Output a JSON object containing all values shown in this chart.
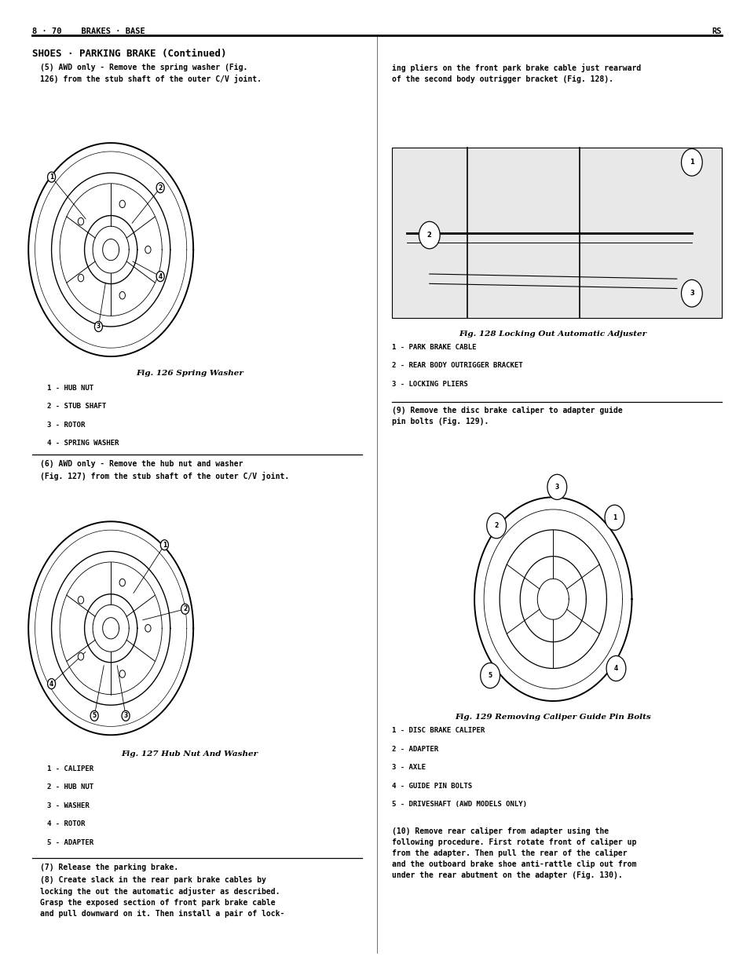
{
  "bg_color": "#ffffff",
  "page_width": 9.6,
  "page_height": 12.42,
  "header_left": "8 · 70    BRAKES · BASE",
  "header_right": "RS",
  "section_title": "SHOES · PARKING BRAKE (Continued)",
  "left_col": {
    "step5_text": "(5) AWD only - Remove the spring washer (Fig.\n126) from the stub shaft of the outer C/V joint.",
    "fig126_caption": "Fig. 126 Spring Washer",
    "fig126_labels": [
      "1 - HUB NUT",
      "2 - STUB SHAFT",
      "3 - ROTOR",
      "4 - SPRING WASHER"
    ],
    "step6_text": "(6) AWD only - Remove the hub nut and washer\n(Fig. 127) from the stub shaft of the outer C/V joint.",
    "fig127_caption": "Fig. 127 Hub Nut And Washer",
    "fig127_labels": [
      "1 - CALIPER",
      "2 - HUB NUT",
      "3 - WASHER",
      "4 - ROTOR",
      "5 - ADAPTER"
    ],
    "step7_text": "(7) Release the parking brake.",
    "step8_text": "(8) Create slack in the rear park brake cables by\nlocking the out the automatic adjuster as described.\nGrasp the exposed section of front park brake cable\nand pull downward on it. Then install a pair of lock-"
  },
  "right_col": {
    "step8_cont_text": "ing pliers on the front park brake cable just rearward\nof the second body outrigger bracket (Fig. 128).",
    "fig128_caption": "Fig. 128 Locking Out Automatic Adjuster",
    "fig128_labels": [
      "1 - PARK BRAKE CABLE",
      "2 - REAR BODY OUTRIGGER BRACKET",
      "3 - LOCKING PLIERS"
    ],
    "step9_text": "(9) Remove the disc brake caliper to adapter guide\npin bolts (Fig. 129).",
    "fig129_caption": "Fig. 129 Removing Caliper Guide Pin Bolts",
    "fig129_labels": [
      "1 - DISC BRAKE CALIPER",
      "2 - ADAPTER",
      "3 - AXLE",
      "4 - GUIDE PIN BOLTS",
      "5 - DRIVESHAFT (AWD MODELS ONLY)"
    ],
    "step10_text": "(10) Remove rear caliper from adapter using the\nfollowing procedure. First rotate front of caliper up\nfrom the adapter. Then pull the rear of the caliper\nand the outboard brake shoe anti-rattle clip out from\nunder the rear abutment on the adapter (Fig. 130)."
  }
}
